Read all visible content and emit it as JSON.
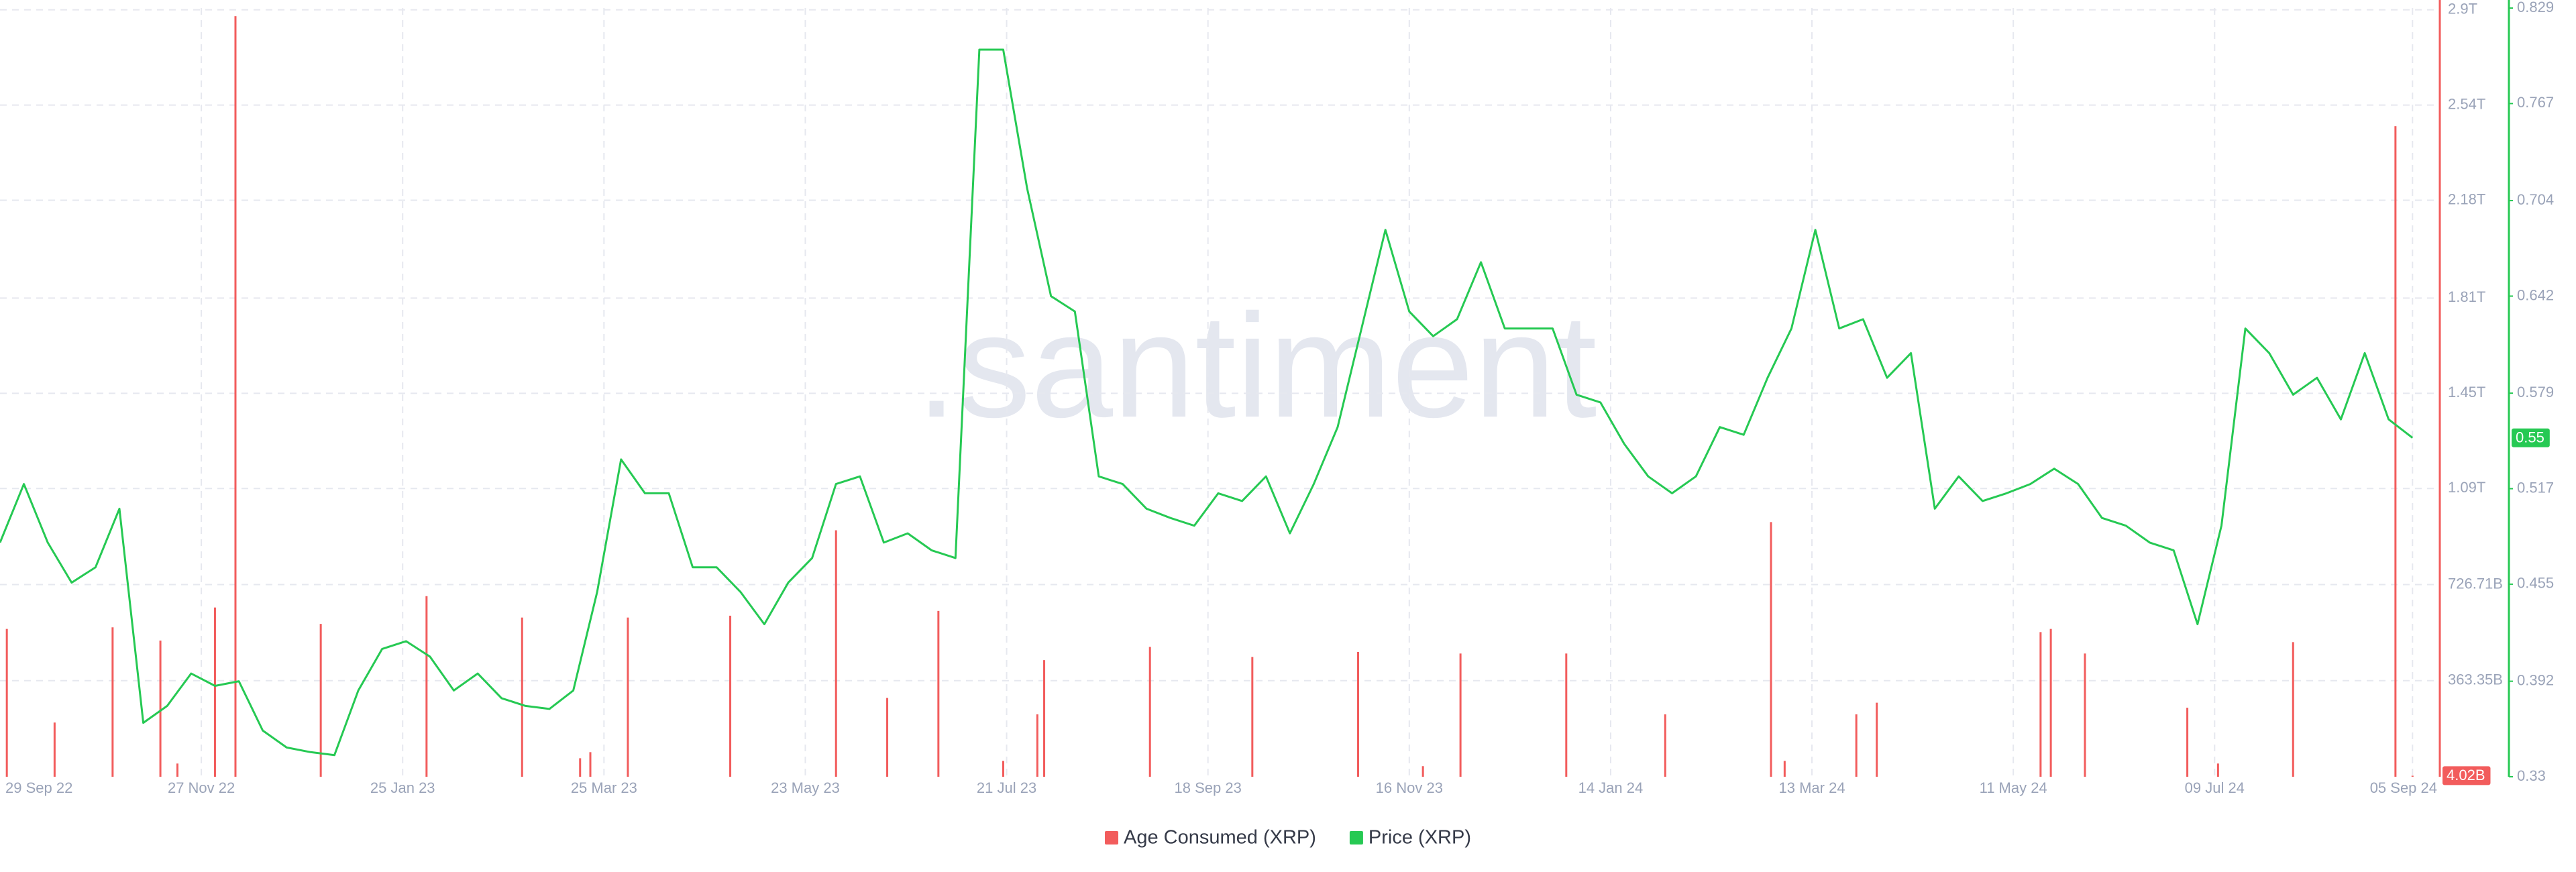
{
  "chart_data": {
    "type": "combo",
    "watermark": ".santiment",
    "xlim": [
      "2022-09-29",
      "2024-09-13"
    ],
    "xticks": [
      {
        "value": "2022-09-29",
        "label": "29 Sep 22"
      },
      {
        "value": "2022-11-27",
        "label": "27 Nov 22"
      },
      {
        "value": "2023-01-25",
        "label": "25 Jan 23"
      },
      {
        "value": "2023-03-25",
        "label": "25 Mar 23"
      },
      {
        "value": "2023-05-23",
        "label": "23 May 23"
      },
      {
        "value": "2023-07-21",
        "label": "21 Jul 23"
      },
      {
        "value": "2023-09-18",
        "label": "18 Sep 23"
      },
      {
        "value": "2023-11-16",
        "label": "16 Nov 23"
      },
      {
        "value": "2024-01-14",
        "label": "14 Jan 24"
      },
      {
        "value": "2024-03-13",
        "label": "13 Mar 24"
      },
      {
        "value": "2024-05-11",
        "label": "11 May 24"
      },
      {
        "value": "2024-07-09",
        "label": "09 Jul 24"
      },
      {
        "value": "2024-09-05",
        "label": "05 Sep 24"
      }
    ],
    "ylim": [
      0,
      2906800000000
    ],
    "yticks": [
      {
        "value": 363350000000,
        "label": "363.35B"
      },
      {
        "value": 726710000000,
        "label": "726.71B"
      },
      {
        "value": 1090000000000,
        "label": "1.09T"
      },
      {
        "value": 1450000000000,
        "label": "1.45T"
      },
      {
        "value": 1810000000000,
        "label": "1.81T"
      },
      {
        "value": 2180000000000,
        "label": "2.18T"
      },
      {
        "value": 2540000000000,
        "label": "2.54T"
      },
      {
        "value": 2900000000000,
        "label": "2.9T"
      }
    ],
    "y2lim": [
      0.33,
      0.829
    ],
    "y2ticks": [
      0.33,
      0.392,
      0.455,
      0.517,
      0.579,
      0.642,
      0.704,
      0.767,
      0.829
    ],
    "grid": true,
    "legend": "bottom",
    "series": [
      {
        "name": "Age Consumed (XRP)",
        "type": "bar",
        "color": "#f25c5c",
        "x": [
          "2022-10-01",
          "2022-10-15",
          "2022-11-01",
          "2022-11-15",
          "2022-11-20",
          "2022-12-01",
          "2022-12-07",
          "2023-01-01",
          "2023-02-01",
          "2023-03-01",
          "2023-03-18",
          "2023-03-21",
          "2023-04-01",
          "2023-05-01",
          "2023-06-01",
          "2023-06-16",
          "2023-07-01",
          "2023-07-20",
          "2023-07-30",
          "2023-08-01",
          "2023-09-01",
          "2023-10-01",
          "2023-11-01",
          "2023-11-20",
          "2023-12-01",
          "2024-01-01",
          "2024-01-30",
          "2024-03-01",
          "2024-03-05",
          "2024-03-26",
          "2024-04-01",
          "2024-05-19",
          "2024-05-22",
          "2024-06-01",
          "2024-07-01",
          "2024-07-10",
          "2024-08-01",
          "2024-08-31",
          "2024-09-05"
        ],
        "values": [
          559000000000,
          205000000000,
          565000000000,
          515000000000,
          50000000000,
          640000000000,
          2876000000000,
          578000000000,
          683000000000,
          602000000000,
          70000000000,
          93000000000,
          602000000000,
          609000000000,
          932000000000,
          298000000000,
          627000000000,
          60000000000,
          236000000000,
          441000000000,
          491000000000,
          453000000000,
          472000000000,
          40000000000,
          466000000000,
          466000000000,
          236000000000,
          963000000000,
          60000000000,
          236000000000,
          280000000000,
          547000000000,
          559000000000,
          466000000000,
          261000000000,
          50000000000,
          509000000000,
          2460000000000,
          4020000000
        ],
        "value_labels": [
          null,
          null,
          null,
          null,
          null,
          null,
          null,
          null,
          null,
          null,
          null,
          null,
          null,
          null,
          null,
          null,
          null,
          null,
          null,
          null,
          null,
          null,
          null,
          null,
          null,
          null,
          null,
          null,
          null,
          null,
          null,
          null,
          null,
          null,
          null,
          null,
          null,
          null,
          "4.02B"
        ]
      },
      {
        "name": "Price (XRP)",
        "type": "line",
        "color": "#26c953",
        "axis": "y2",
        "x": [
          "2022-09-29",
          "2022-10-06",
          "2022-10-13",
          "2022-10-20",
          "2022-10-27",
          "2022-11-03",
          "2022-11-10",
          "2022-11-17",
          "2022-11-24",
          "2022-12-01",
          "2022-12-08",
          "2022-12-15",
          "2022-12-22",
          "2022-12-29",
          "2023-01-05",
          "2023-01-12",
          "2023-01-19",
          "2023-01-26",
          "2023-02-02",
          "2023-02-09",
          "2023-02-16",
          "2023-02-23",
          "2023-03-02",
          "2023-03-09",
          "2023-03-16",
          "2023-03-23",
          "2023-03-30",
          "2023-04-06",
          "2023-04-13",
          "2023-04-20",
          "2023-04-27",
          "2023-05-04",
          "2023-05-11",
          "2023-05-18",
          "2023-05-25",
          "2023-06-01",
          "2023-06-08",
          "2023-06-15",
          "2023-06-22",
          "2023-06-29",
          "2023-07-06",
          "2023-07-13",
          "2023-07-20",
          "2023-07-27",
          "2023-08-03",
          "2023-08-10",
          "2023-08-17",
          "2023-08-24",
          "2023-08-31",
          "2023-09-07",
          "2023-09-14",
          "2023-09-21",
          "2023-09-28",
          "2023-10-05",
          "2023-10-12",
          "2023-10-19",
          "2023-10-26",
          "2023-11-02",
          "2023-11-09",
          "2023-11-16",
          "2023-11-23",
          "2023-11-30",
          "2023-12-07",
          "2023-12-14",
          "2023-12-21",
          "2023-12-28",
          "2024-01-04",
          "2024-01-11",
          "2024-01-18",
          "2024-01-25",
          "2024-02-01",
          "2024-02-08",
          "2024-02-15",
          "2024-02-22",
          "2024-02-29",
          "2024-03-07",
          "2024-03-14",
          "2024-03-21",
          "2024-03-28",
          "2024-04-04",
          "2024-04-11",
          "2024-04-18",
          "2024-04-25",
          "2024-05-02",
          "2024-05-09",
          "2024-05-16",
          "2024-05-23",
          "2024-05-30",
          "2024-06-06",
          "2024-06-13",
          "2024-06-20",
          "2024-06-27",
          "2024-07-04",
          "2024-07-11",
          "2024-07-18",
          "2024-07-25",
          "2024-08-01",
          "2024-08-08",
          "2024-08-15",
          "2024-08-22",
          "2024-08-29",
          "2024-09-05"
        ],
        "values": [
          0.482,
          0.52,
          0.482,
          0.456,
          0.466,
          0.504,
          0.365,
          0.376,
          0.397,
          0.389,
          0.392,
          0.36,
          0.349,
          0.346,
          0.344,
          0.386,
          0.413,
          0.418,
          0.408,
          0.386,
          0.397,
          0.381,
          0.376,
          0.374,
          0.386,
          0.45,
          0.536,
          0.514,
          0.514,
          0.466,
          0.466,
          0.45,
          0.429,
          0.456,
          0.472,
          0.52,
          0.525,
          0.482,
          0.488,
          0.477,
          0.472,
          0.802,
          0.802,
          0.712,
          0.642,
          0.632,
          0.525,
          0.52,
          0.504,
          0.498,
          0.493,
          0.514,
          0.509,
          0.525,
          0.488,
          0.52,
          0.557,
          0.621,
          0.685,
          0.632,
          0.616,
          0.627,
          0.664,
          0.621,
          0.621,
          0.621,
          0.578,
          0.573,
          0.546,
          0.525,
          0.514,
          0.525,
          0.557,
          0.552,
          0.589,
          0.621,
          0.685,
          0.621,
          0.627,
          0.589,
          0.605,
          0.504,
          0.525,
          0.509,
          0.514,
          0.52,
          0.53,
          0.52,
          0.498,
          0.493,
          0.482,
          0.477,
          0.429,
          0.493,
          0.621,
          0.605,
          0.578,
          0.589,
          0.562,
          0.605,
          0.562,
          0.55
        ],
        "value_labels": [
          null,
          null,
          null,
          null,
          null,
          null,
          null,
          null,
          null,
          null,
          null,
          null,
          null,
          null,
          null,
          null,
          null,
          null,
          null,
          null,
          null,
          null,
          null,
          null,
          null,
          null,
          null,
          null,
          null,
          null,
          null,
          null,
          null,
          null,
          null,
          null,
          null,
          null,
          null,
          null,
          null,
          null,
          null,
          null,
          null,
          null,
          null,
          null,
          null,
          null,
          null,
          null,
          null,
          null,
          null,
          null,
          null,
          null,
          null,
          null,
          null,
          null,
          null,
          null,
          null,
          null,
          null,
          null,
          null,
          null,
          null,
          null,
          null,
          null,
          null,
          null,
          null,
          null,
          null,
          null,
          null,
          null,
          null,
          null,
          null,
          null,
          null,
          null,
          null,
          null,
          null,
          null,
          null,
          null,
          null,
          null,
          null,
          null,
          null,
          null,
          null,
          "0.55"
        ]
      }
    ]
  }
}
